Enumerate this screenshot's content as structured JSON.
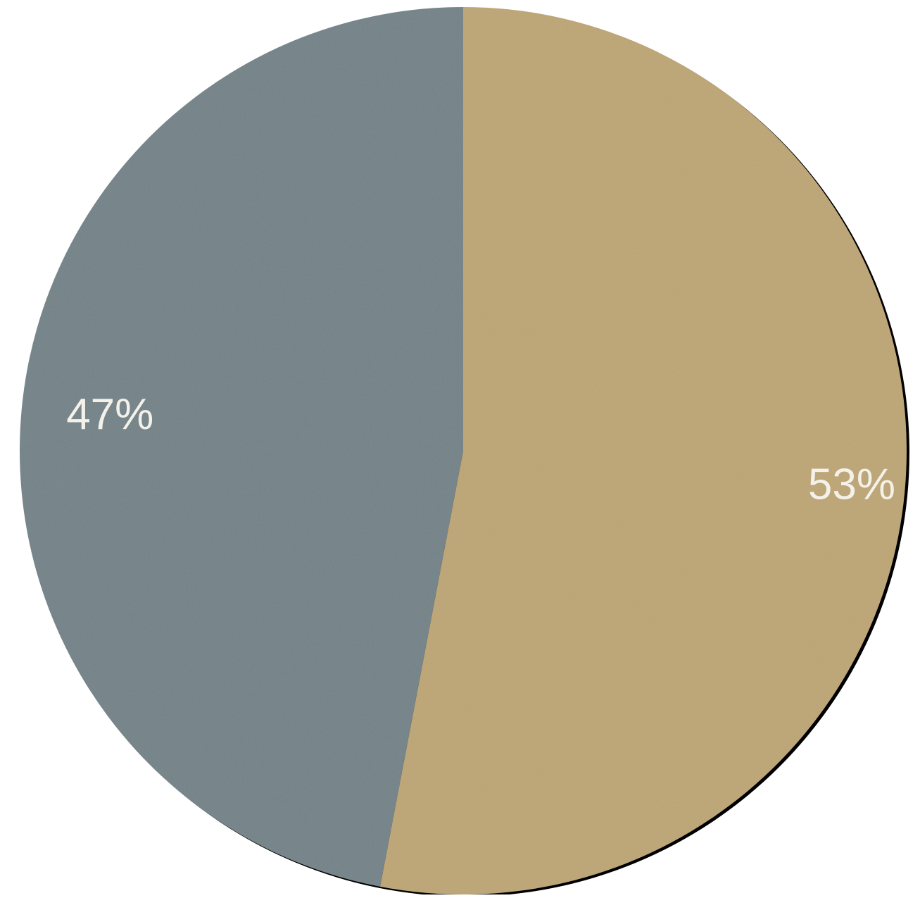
{
  "chart_data": {
    "type": "pie",
    "start_angle_deg": 0,
    "direction": "clockwise",
    "slices": [
      {
        "label": "53%",
        "value": 53,
        "color": "#bda675"
      },
      {
        "label": "47%",
        "value": 47,
        "color": "#738388"
      }
    ],
    "legend": "none"
  }
}
